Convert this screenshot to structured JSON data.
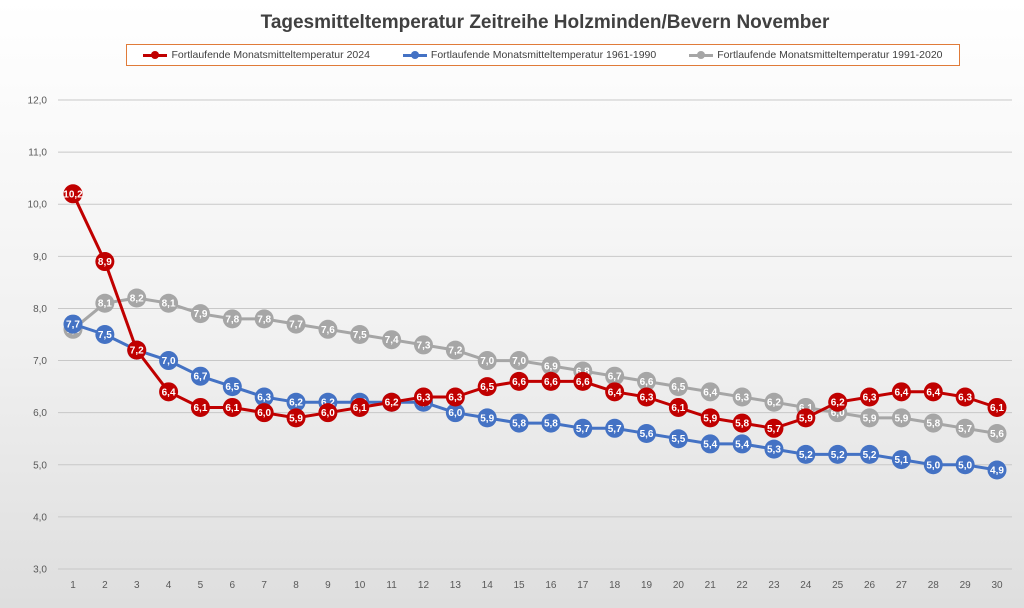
{
  "chart_data": {
    "type": "line",
    "title": "Tagesmitteltemperatur Zeitreihe Holzminden/Bevern November",
    "xlabel": "",
    "ylabel": "",
    "ylim": [
      3.0,
      12.0
    ],
    "yticks": [
      "3,0",
      "4,0",
      "5,0",
      "6,0",
      "7,0",
      "8,0",
      "9,0",
      "10,0",
      "11,0",
      "12,0"
    ],
    "categories": [
      "1",
      "2",
      "3",
      "4",
      "5",
      "6",
      "7",
      "8",
      "9",
      "10",
      "11",
      "12",
      "13",
      "14",
      "15",
      "16",
      "17",
      "18",
      "19",
      "20",
      "21",
      "22",
      "23",
      "24",
      "25",
      "26",
      "27",
      "28",
      "29",
      "30"
    ],
    "legend_position": "top",
    "series": [
      {
        "name": "Fortlaufende Monatsmitteltemperatur 2024",
        "color": "#c00000",
        "values": [
          10.2,
          8.9,
          7.2,
          6.4,
          6.1,
          6.1,
          6.0,
          5.9,
          6.0,
          6.1,
          6.2,
          6.3,
          6.3,
          6.5,
          6.6,
          6.6,
          6.6,
          6.4,
          6.3,
          6.1,
          5.9,
          5.8,
          5.7,
          5.9,
          6.2,
          6.3,
          6.4,
          6.4,
          6.3,
          6.1
        ]
      },
      {
        "name": "Fortlaufende Monatsmitteltemperatur 1961-1990",
        "color": "#4472c4",
        "values": [
          7.7,
          7.5,
          7.2,
          7.0,
          6.7,
          6.5,
          6.3,
          6.2,
          6.2,
          6.2,
          6.2,
          6.2,
          6.0,
          5.9,
          5.8,
          5.8,
          5.7,
          5.7,
          5.6,
          5.5,
          5.4,
          5.4,
          5.3,
          5.2,
          5.2,
          5.2,
          5.1,
          5.0,
          5.0,
          4.9
        ]
      },
      {
        "name": "Fortlaufende Monatsmitteltemperatur 1991-2020",
        "color": "#a6a6a6",
        "values": [
          7.6,
          8.1,
          8.2,
          8.1,
          7.9,
          7.8,
          7.8,
          7.7,
          7.6,
          7.5,
          7.4,
          7.3,
          7.2,
          7.0,
          7.0,
          6.9,
          6.8,
          6.7,
          6.6,
          6.5,
          6.4,
          6.3,
          6.2,
          6.1,
          6.0,
          5.9,
          5.9,
          5.8,
          5.7,
          5.6
        ]
      }
    ]
  }
}
